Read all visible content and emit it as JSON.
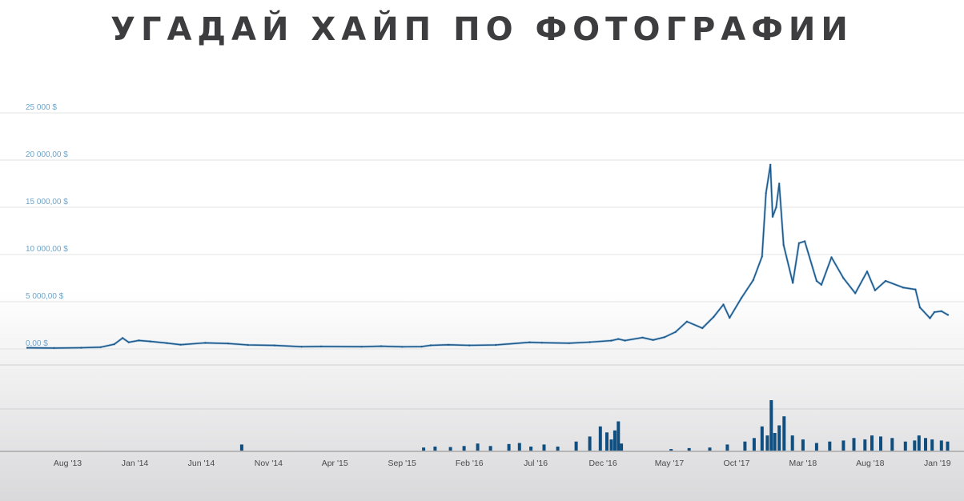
{
  "page_title": "УГАДАЙ ХАЙП ПО ФОТОГРАФИИ",
  "colors": {
    "line": "#1f5a8a",
    "line_light": "#7fb3da",
    "volume": "#0f4e7f",
    "grid": "#e3e3e3",
    "ytick": "#6fa4c8"
  },
  "chart_data": {
    "type": "line",
    "title": "",
    "xlabel": "",
    "ylabel": "",
    "ylim": [
      0,
      25000
    ],
    "yticks": [
      {
        "value": 0,
        "label": "0,00 $"
      },
      {
        "value": 5000,
        "label": "5 000,00 $"
      },
      {
        "value": 10000,
        "label": "10 000,00 $"
      },
      {
        "value": 15000,
        "label": "15 000,00 $"
      },
      {
        "value": 20000,
        "label": "20 000,00 $"
      },
      {
        "value": 25000,
        "label": "25 000 $"
      }
    ],
    "xlim": [
      "2013-05-01",
      "2019-01-25"
    ],
    "xticks": [
      {
        "date": "2013-08-01",
        "label": "Aug '13"
      },
      {
        "date": "2014-01-01",
        "label": "Jan '14"
      },
      {
        "date": "2014-06-01",
        "label": "Jun '14"
      },
      {
        "date": "2014-11-01",
        "label": "Nov '14"
      },
      {
        "date": "2015-04-01",
        "label": "Apr '15"
      },
      {
        "date": "2015-09-01",
        "label": "Sep '15"
      },
      {
        "date": "2016-02-01",
        "label": "Feb '16"
      },
      {
        "date": "2016-07-01",
        "label": "Jul '16"
      },
      {
        "date": "2016-12-01",
        "label": "Dec '16"
      },
      {
        "date": "2017-05-01",
        "label": "May '17"
      },
      {
        "date": "2017-10-01",
        "label": "Oct '17"
      },
      {
        "date": "2018-03-01",
        "label": "Mar '18"
      },
      {
        "date": "2018-08-01",
        "label": "Aug '18"
      },
      {
        "date": "2019-01-01",
        "label": "Jan '19"
      }
    ],
    "series": [
      {
        "values": [
          [
            "2013-05-01",
            120
          ],
          [
            "2013-07-01",
            90
          ],
          [
            "2013-09-01",
            125
          ],
          [
            "2013-10-15",
            190
          ],
          [
            "2013-11-15",
            500
          ],
          [
            "2013-12-04",
            1150
          ],
          [
            "2013-12-18",
            700
          ],
          [
            "2014-01-10",
            900
          ],
          [
            "2014-02-05",
            800
          ],
          [
            "2014-03-15",
            620
          ],
          [
            "2014-04-15",
            450
          ],
          [
            "2014-06-10",
            640
          ],
          [
            "2014-08-01",
            580
          ],
          [
            "2014-09-15",
            420
          ],
          [
            "2014-11-15",
            370
          ],
          [
            "2015-01-15",
            240
          ],
          [
            "2015-03-01",
            260
          ],
          [
            "2015-06-01",
            240
          ],
          [
            "2015-07-15",
            285
          ],
          [
            "2015-09-01",
            230
          ],
          [
            "2015-10-15",
            250
          ],
          [
            "2015-11-05",
            380
          ],
          [
            "2015-12-15",
            440
          ],
          [
            "2016-02-01",
            380
          ],
          [
            "2016-04-01",
            420
          ],
          [
            "2016-06-17",
            700
          ],
          [
            "2016-07-15",
            660
          ],
          [
            "2016-09-15",
            610
          ],
          [
            "2016-11-01",
            720
          ],
          [
            "2016-12-20",
            880
          ],
          [
            "2017-01-05",
            1050
          ],
          [
            "2017-01-20",
            890
          ],
          [
            "2017-03-01",
            1200
          ],
          [
            "2017-03-25",
            950
          ],
          [
            "2017-04-20",
            1250
          ],
          [
            "2017-05-15",
            1800
          ],
          [
            "2017-06-10",
            2900
          ],
          [
            "2017-07-15",
            2200
          ],
          [
            "2017-08-10",
            3400
          ],
          [
            "2017-09-01",
            4700
          ],
          [
            "2017-09-15",
            3300
          ],
          [
            "2017-10-12",
            5400
          ],
          [
            "2017-11-08",
            7300
          ],
          [
            "2017-11-28",
            9800
          ],
          [
            "2017-12-07",
            16500
          ],
          [
            "2017-12-17",
            19500
          ],
          [
            "2017-12-22",
            14000
          ],
          [
            "2017-12-30",
            15000
          ],
          [
            "2018-01-06",
            17500
          ],
          [
            "2018-01-16",
            11000
          ],
          [
            "2018-02-06",
            7000
          ],
          [
            "2018-02-20",
            11200
          ],
          [
            "2018-03-05",
            11400
          ],
          [
            "2018-04-01",
            7200
          ],
          [
            "2018-04-12",
            6800
          ],
          [
            "2018-05-05",
            9700
          ],
          [
            "2018-06-01",
            7500
          ],
          [
            "2018-06-28",
            5900
          ],
          [
            "2018-07-25",
            8200
          ],
          [
            "2018-08-12",
            6200
          ],
          [
            "2018-09-05",
            7200
          ],
          [
            "2018-10-15",
            6500
          ],
          [
            "2018-11-12",
            6300
          ],
          [
            "2018-11-22",
            4400
          ],
          [
            "2018-12-15",
            3250
          ],
          [
            "2018-12-25",
            3900
          ],
          [
            "2019-01-10",
            4000
          ],
          [
            "2019-01-25",
            3600
          ]
        ]
      }
    ],
    "volume": {
      "ylim": [
        0,
        100
      ],
      "values": [
        [
          "2014-09-01",
          12
        ],
        [
          "2015-10-20",
          6
        ],
        [
          "2015-11-15",
          8
        ],
        [
          "2015-12-20",
          7
        ],
        [
          "2016-01-20",
          9
        ],
        [
          "2016-02-20",
          14
        ],
        [
          "2016-03-20",
          9
        ],
        [
          "2016-05-01",
          13
        ],
        [
          "2016-05-25",
          15
        ],
        [
          "2016-06-20",
          8
        ],
        [
          "2016-07-20",
          12
        ],
        [
          "2016-08-20",
          8
        ],
        [
          "2016-10-01",
          18
        ],
        [
          "2016-11-01",
          28
        ],
        [
          "2016-11-25",
          48
        ],
        [
          "2016-12-10",
          36
        ],
        [
          "2016-12-20",
          22
        ],
        [
          "2016-12-28",
          40
        ],
        [
          "2017-01-05",
          58
        ],
        [
          "2017-01-12",
          14
        ],
        [
          "2017-05-05",
          3
        ],
        [
          "2017-06-15",
          5
        ],
        [
          "2017-08-01",
          6
        ],
        [
          "2017-09-10",
          12
        ],
        [
          "2017-10-20",
          18
        ],
        [
          "2017-11-10",
          25
        ],
        [
          "2017-11-28",
          48
        ],
        [
          "2017-12-10",
          30
        ],
        [
          "2017-12-19",
          120
        ],
        [
          "2017-12-27",
          35
        ],
        [
          "2018-01-06",
          50
        ],
        [
          "2018-01-17",
          68
        ],
        [
          "2018-02-05",
          30
        ],
        [
          "2018-03-01",
          22
        ],
        [
          "2018-04-01",
          15
        ],
        [
          "2018-05-01",
          18
        ],
        [
          "2018-06-01",
          20
        ],
        [
          "2018-06-25",
          25
        ],
        [
          "2018-07-20",
          22
        ],
        [
          "2018-08-05",
          30
        ],
        [
          "2018-08-25",
          28
        ],
        [
          "2018-09-20",
          25
        ],
        [
          "2018-10-20",
          18
        ],
        [
          "2018-11-10",
          20
        ],
        [
          "2018-11-20",
          30
        ],
        [
          "2018-12-05",
          25
        ],
        [
          "2018-12-20",
          22
        ],
        [
          "2019-01-10",
          20
        ],
        [
          "2019-01-24",
          18
        ]
      ]
    }
  }
}
